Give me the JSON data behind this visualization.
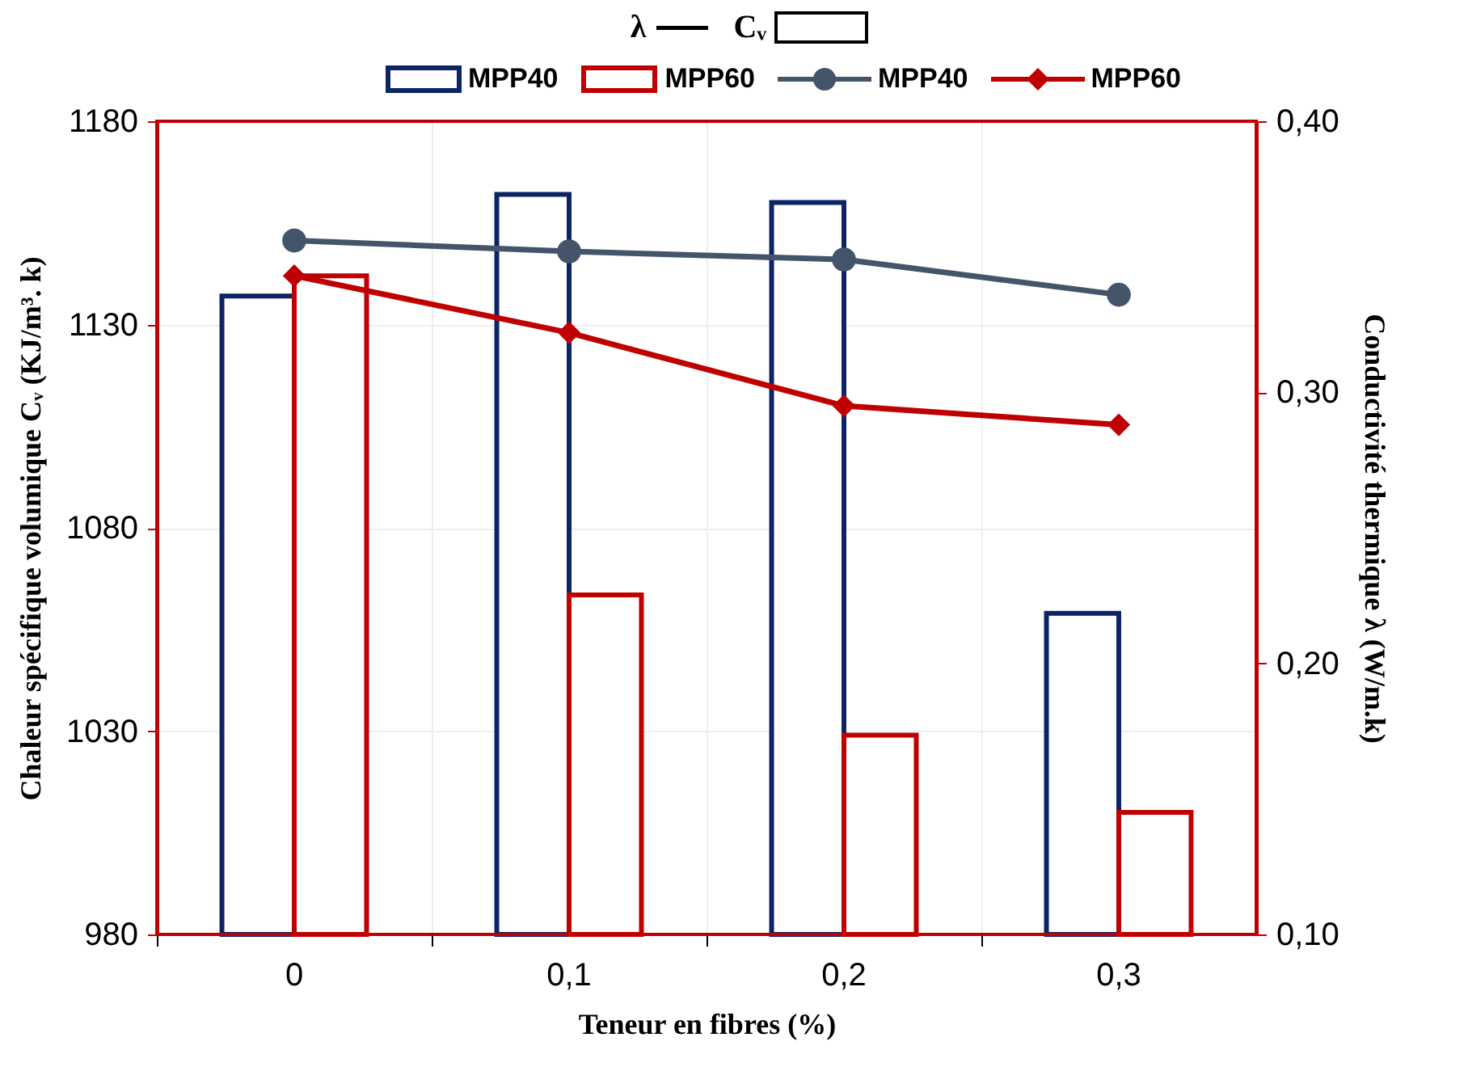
{
  "chart_data": {
    "type": "bar",
    "annotations": [
      "λ",
      "Cᵥ"
    ],
    "xlabel": "Teneur en fibres (%)",
    "ylabel": "Chaleur spécifique volumique Cᵥ (KJ/m³. k)",
    "y2label": "Conductivité thermique  λ (W/m.k)",
    "categories": [
      "0",
      "0,1",
      "0,2",
      "0,3"
    ],
    "series": [
      {
        "name": "MPP40",
        "type": "bar",
        "color": "#0c2466",
        "values": [
          1137,
          1162,
          1160,
          1059
        ]
      },
      {
        "name": "MPP60",
        "type": "bar",
        "color": "#c00000",
        "values": [
          1142,
          1063.5,
          1029,
          1010
        ]
      },
      {
        "name": "MPP40",
        "type": "line",
        "axis": "y2",
        "marker": "circle",
        "color": "#44546a",
        "values": [
          0.356,
          0.352,
          0.349,
          0.336
        ]
      },
      {
        "name": "MPP60",
        "type": "line",
        "axis": "y2",
        "marker": "diamond",
        "color": "#c00000",
        "values": [
          0.343,
          0.322,
          0.295,
          0.288
        ]
      }
    ],
    "ylim": [
      980,
      1180
    ],
    "yticks": [
      980,
      1030,
      1080,
      1130,
      1180
    ],
    "y2lim": [
      0.1,
      0.4
    ],
    "y2ticks": [
      {
        "value": 0.1,
        "label": "0,10"
      },
      {
        "value": 0.2,
        "label": "0,20"
      },
      {
        "value": 0.3,
        "label": "0,30"
      },
      {
        "value": 0.4,
        "label": "0,40"
      }
    ],
    "grid": true,
    "legend": "top"
  }
}
